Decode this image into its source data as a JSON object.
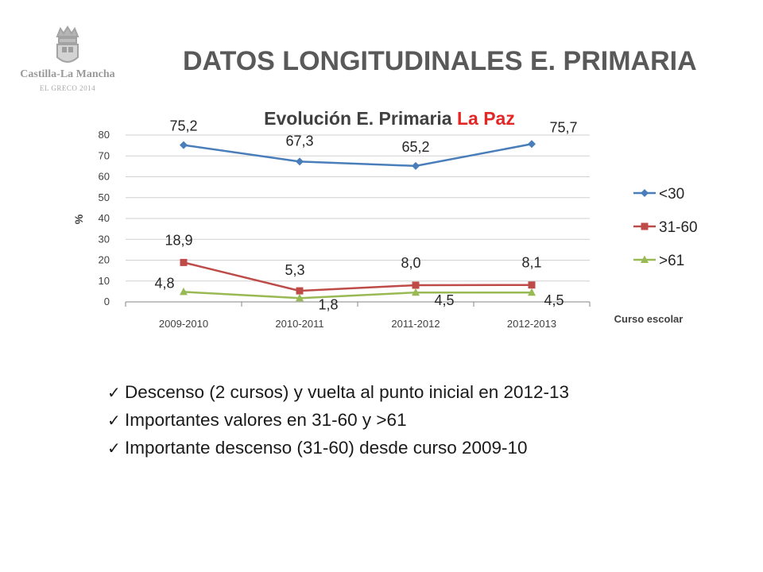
{
  "logo": {
    "brand": "Castilla-La Mancha",
    "subtitle": "EL GRECO 2014"
  },
  "slide_title": "DATOS LONGITUDINALES E. PRIMARIA",
  "chart_data": {
    "type": "line",
    "title": "Evolución E. Primaria",
    "title_highlight": "La Paz",
    "title_highlight_color": "#e32626",
    "xlabel": "Curso escolar",
    "ylabel": "%",
    "ylim": [
      0,
      80
    ],
    "yticks": [
      "0",
      "10",
      "20",
      "30",
      "40",
      "50",
      "60",
      "70",
      "80"
    ],
    "categories": [
      "2009-2010",
      "2010-2011",
      "2011-2012",
      "2012-2013"
    ],
    "grid": true,
    "legend_position": "right",
    "series": [
      {
        "name": "<30",
        "values": [
          75.2,
          67.3,
          65.2,
          75.7
        ],
        "labels": [
          "75,2",
          "67,3",
          "65,2",
          "75,7"
        ],
        "color": "#4a7ebb",
        "marker": "diamond"
      },
      {
        "name": "31-60",
        "values": [
          18.9,
          5.3,
          8.0,
          8.1
        ],
        "labels": [
          "18,9",
          "5,3",
          "8,0",
          "8,1"
        ],
        "color": "#be4b48",
        "marker": "square"
      },
      {
        "name": ">61",
        "values": [
          4.8,
          1.8,
          4.5,
          4.5
        ],
        "labels": [
          "4,8",
          "1,8",
          "4,5",
          "4,5"
        ],
        "color": "#98b954",
        "marker": "triangle"
      }
    ]
  },
  "bullets": [
    "Descenso (2 cursos) y vuelta al punto inicial en 2012-13",
    "Importantes valores en 31-60 y >61",
    "Importante descenso (31-60) desde curso 2009-10"
  ]
}
